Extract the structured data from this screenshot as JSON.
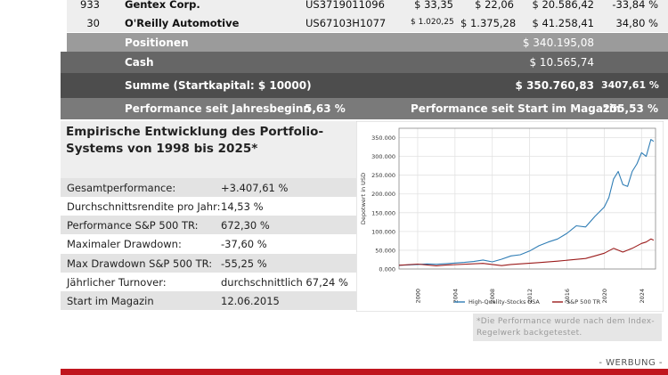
{
  "table_rows": [
    {
      "qty": "933",
      "name": "Gentex Corp.",
      "isin": "US3719011096",
      "buy": "$ 33,35",
      "price": "$ 22,06",
      "value": "$ 20.586,42",
      "perf": "-33,84 %"
    },
    {
      "qty": "30",
      "name": "O'Reilly Automotive",
      "isin": "US67103H1077",
      "buy": "$ 1.020,25",
      "price": "$ 1.375,28",
      "value": "$ 41.258,41",
      "perf": "34,80 %"
    }
  ],
  "positions": {
    "label": "Positionen",
    "value": "$ 340.195,08"
  },
  "cash": {
    "label": "Cash",
    "value": "$ 10.565,74"
  },
  "sum": {
    "label": "Summe (Startkapital: $ 10000)",
    "value": "$ 350.760,83",
    "perf": "3407,61 %"
  },
  "performance": {
    "ytd_label": "Performance seit Jahresbeginn",
    "ytd_value": "5,63 %",
    "since_label": "Performance seit Start im Magazin",
    "since_value": "255,53 %"
  },
  "stats": {
    "title": "Empirische Entwicklung des Portfolio-Systems von 1998 bis 2025*",
    "rows": [
      {
        "label": "Gesamtperformance:",
        "value": "+3.407,61 %"
      },
      {
        "label": "Durchschnittsrendite pro Jahr:",
        "value": "14,53 %"
      },
      {
        "label": "Performance S&P 500 TR:",
        "value": "672,30 %"
      },
      {
        "label": "Maximaler Drawdown:",
        "value": "-37,60 %"
      },
      {
        "label": "Max Drawdown S&P 500 TR:",
        "value": "-55,25 %"
      },
      {
        "label": "Jährlicher Turnover:",
        "value": "durchschnittlich 67,24 %"
      },
      {
        "label": "Start im Magazin",
        "value": "12.06.2015"
      }
    ]
  },
  "footnote": "*Die Performance wurde nach dem Index-Regelwerk backgetestet.",
  "werbung": "- WERBUNG -",
  "colors": {
    "high_quality": "#2f7db5",
    "sp500": "#9b1b1b",
    "accent_red": "#c0161e"
  },
  "chart_data": {
    "type": "line",
    "ylabel": "Depotwert in USD",
    "xlabel": "",
    "ylim": [
      0,
      375000
    ],
    "xlim": [
      1998,
      2025.5
    ],
    "yticks": [
      0,
      50000,
      100000,
      150000,
      200000,
      250000,
      300000,
      350000
    ],
    "ytick_labels": [
      "0.000",
      "50.000",
      "100.000",
      "150.000",
      "200.000",
      "250.000",
      "300.000",
      "350.000"
    ],
    "xticks": [
      2000,
      2004,
      2008,
      2012,
      2016,
      2020,
      2024
    ],
    "xtick_labels": [
      "2000",
      "2004",
      "2008",
      "2012",
      "2016",
      "2020",
      "2024"
    ],
    "grid": true,
    "legend": "bottom",
    "series": [
      {
        "name": "High-Quality-Stocks USA",
        "x": [
          1998,
          1999,
          2000,
          2001,
          2002,
          2003,
          2004,
          2005,
          2006,
          2007,
          2008,
          2009,
          2010,
          2011,
          2012,
          2013,
          2014,
          2015,
          2016,
          2017,
          2018,
          2019,
          2020,
          2020.5,
          2021,
          2021.5,
          2022,
          2022.5,
          2023,
          2023.5,
          2024,
          2024.5,
          2025,
          2025.3
        ],
        "values": [
          10000,
          11000,
          12000,
          13500,
          12500,
          14000,
          16000,
          17500,
          20000,
          24000,
          19000,
          26000,
          35000,
          38000,
          48000,
          62000,
          72000,
          80000,
          95000,
          115000,
          112000,
          140000,
          165000,
          190000,
          240000,
          260000,
          225000,
          220000,
          260000,
          280000,
          310000,
          300000,
          345000,
          340000
        ]
      },
      {
        "name": "S&P 500 TR",
        "x": [
          1998,
          2000,
          2002,
          2003,
          2007,
          2009,
          2010,
          2013,
          2015,
          2018,
          2019,
          2020,
          2021,
          2022,
          2023,
          2024,
          2024.5,
          2025,
          2025.3
        ],
        "values": [
          10000,
          13000,
          8500,
          10500,
          15000,
          9000,
          12000,
          17000,
          21000,
          28000,
          35000,
          42000,
          55000,
          45000,
          55000,
          68000,
          72000,
          80000,
          77000
        ]
      }
    ]
  }
}
